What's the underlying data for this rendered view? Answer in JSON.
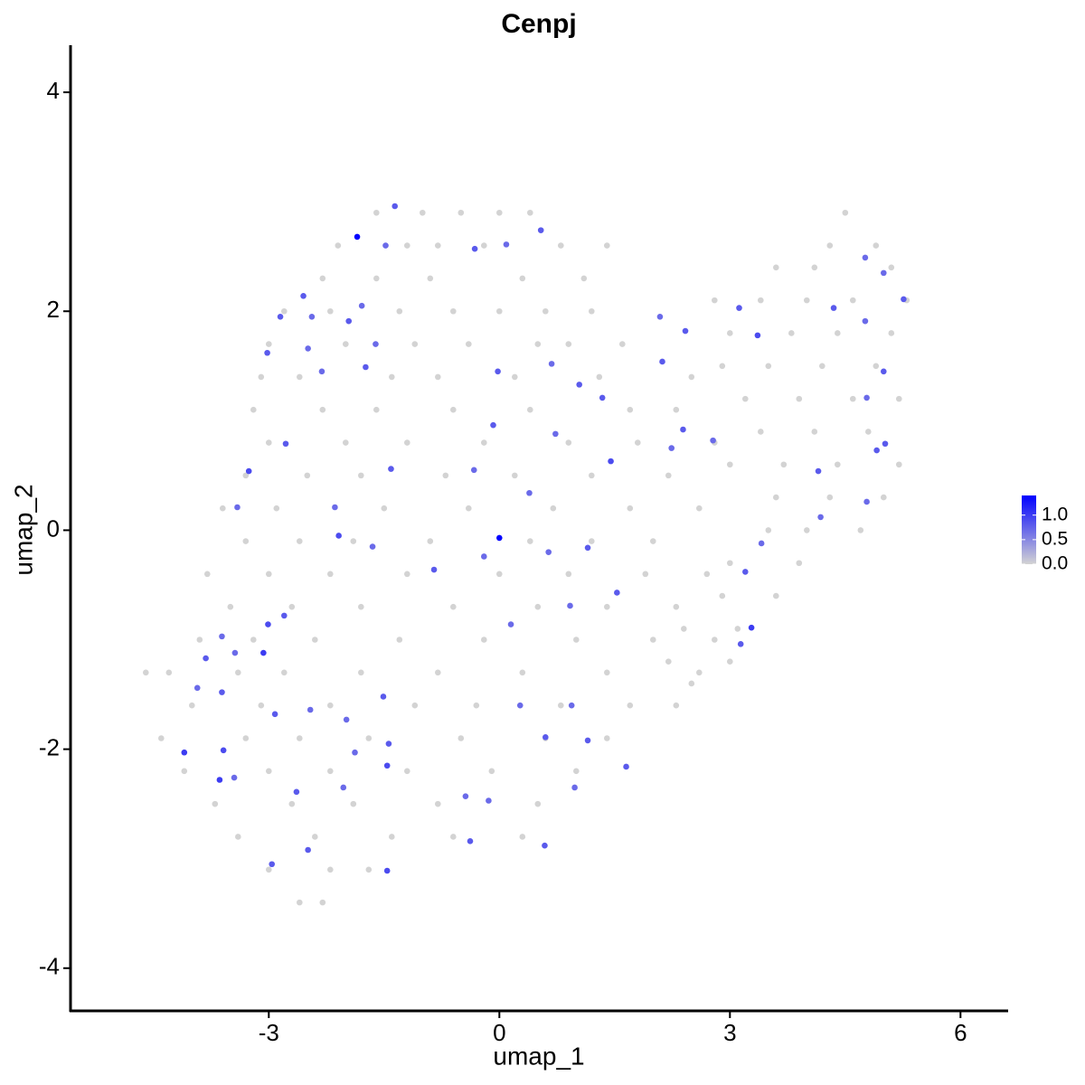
{
  "chart_data": {
    "type": "scatter",
    "title": "Cenpj",
    "xlabel": "umap_1",
    "ylabel": "umap_2",
    "x": [
      -1.6,
      -1.0,
      -0.5,
      0.0,
      0.4,
      -2.1,
      -1.2,
      -0.8,
      -0.2,
      0.8,
      1.4,
      -2.3,
      -1.6,
      -0.9,
      0.3,
      1.1,
      -2.8,
      -2.2,
      -1.3,
      -0.6,
      0.0,
      0.6,
      1.2,
      -3.0,
      -2.0,
      -1.1,
      -0.4,
      0.5,
      0.9,
      1.6,
      -3.1,
      -2.6,
      -1.4,
      -0.8,
      0.2,
      1.3,
      2.5,
      -3.2,
      -2.3,
      -1.6,
      -0.6,
      0.4,
      1.7,
      2.3,
      -3.0,
      -2.0,
      -1.2,
      -0.2,
      0.9,
      1.8,
      2.8,
      -3.3,
      -2.5,
      -1.8,
      -0.7,
      0.2,
      1.2,
      2.2,
      -3.6,
      -2.9,
      -1.5,
      -0.4,
      0.7,
      1.7,
      2.6,
      -3.3,
      -2.6,
      -1.9,
      -0.9,
      0.4,
      1.2,
      2.0,
      -3.8,
      -3.0,
      -2.2,
      -1.2,
      0.0,
      0.9,
      1.9,
      2.7,
      -3.5,
      -2.7,
      -1.8,
      -0.6,
      0.5,
      1.4,
      2.3,
      -3.9,
      -3.2,
      -2.4,
      -1.3,
      -0.2,
      1.0,
      2.0,
      2.8,
      -4.6,
      -4.3,
      -3.4,
      -2.8,
      -1.8,
      -0.8,
      0.3,
      1.4,
      2.6,
      -4.0,
      -3.1,
      -2.2,
      -1.1,
      -0.3,
      0.8,
      1.7,
      2.3,
      -4.4,
      -3.3,
      -2.6,
      -1.7,
      -0.5,
      0.6,
      1.4,
      -4.1,
      -3.0,
      -2.2,
      -1.2,
      -0.1,
      1.0,
      -3.7,
      -2.7,
      -1.9,
      -0.8,
      0.5,
      -3.4,
      -2.4,
      -1.4,
      -0.6,
      0.3,
      -3.0,
      -2.2,
      -1.7,
      -2.6,
      -2.3,
      4.5,
      4.3,
      4.9,
      3.6,
      4.1,
      5.1,
      2.8,
      3.4,
      4.0,
      4.6,
      5.3,
      3.0,
      3.8,
      4.4,
      5.1,
      2.9,
      3.5,
      4.2,
      4.9,
      3.2,
      3.9,
      4.6,
      5.2,
      3.4,
      4.1,
      4.8,
      3.0,
      3.7,
      4.4,
      5.2,
      3.6,
      4.3,
      5.0,
      3.5,
      4.0,
      4.7,
      3.0,
      3.9,
      2.9,
      3.6,
      2.4,
      3.1,
      2.2,
      3.0,
      2.5,
      -1.85,
      0,
      -1.36,
      -1.48,
      -0.32,
      0.09,
      0.54,
      -2.55,
      -2.85,
      -2.44,
      -1.79,
      -1.96,
      -1.61,
      -3.02,
      -2.49,
      -2.31,
      -1.74,
      -0.02,
      0.68,
      1.04,
      1.34,
      -0.08,
      0.73,
      0.39,
      -3.26,
      -2.78,
      -2.14,
      -1.41,
      -0.33,
      -3.41,
      -2.09,
      -1.65,
      -0.85,
      -0.2,
      1.15,
      1.53,
      0.92,
      0.15,
      -2.8,
      -3.01,
      -3.07,
      -3.61,
      -3.82,
      -3.44,
      -3.93,
      -3.61,
      -2.92,
      -2.46,
      -1.99,
      -1.51,
      -1.44,
      -1.46,
      -1.88,
      -3.59,
      -4.1,
      -3.64,
      -3.45,
      -2.64,
      -2.03,
      -2.49,
      -1.46,
      -2.96,
      -0.38,
      -0.14,
      -0.44,
      0.27,
      0.6,
      0.94,
      1.15,
      1.65,
      0.98,
      0.59,
      3.2,
      3.41,
      3.28,
      3.14,
      2.39,
      2.24,
      2.78,
      2.42,
      2.09,
      2.12,
      3.12,
      3.36,
      4.35,
      4.76,
      5.0,
      5.26,
      4.76,
      5.0,
      4.78,
      5.02,
      4.91,
      4.78,
      4.15,
      4.18,
      1.45,
      0.64
    ],
    "y": [
      2.9,
      2.9,
      2.9,
      2.9,
      2.9,
      2.6,
      2.6,
      2.6,
      2.6,
      2.6,
      2.6,
      2.3,
      2.3,
      2.3,
      2.3,
      2.3,
      2.0,
      2.0,
      2.0,
      2.0,
      2.0,
      2.0,
      2.0,
      1.7,
      1.7,
      1.7,
      1.7,
      1.7,
      1.7,
      1.7,
      1.4,
      1.4,
      1.4,
      1.4,
      1.4,
      1.4,
      1.4,
      1.1,
      1.1,
      1.1,
      1.1,
      1.1,
      1.1,
      1.1,
      0.8,
      0.8,
      0.8,
      0.8,
      0.8,
      0.8,
      0.8,
      0.5,
      0.5,
      0.5,
      0.5,
      0.5,
      0.5,
      0.5,
      0.2,
      0.2,
      0.2,
      0.2,
      0.2,
      0.2,
      0.2,
      -0.1,
      -0.1,
      -0.1,
      -0.1,
      -0.1,
      -0.1,
      -0.1,
      -0.4,
      -0.4,
      -0.4,
      -0.4,
      -0.4,
      -0.4,
      -0.4,
      -0.4,
      -0.7,
      -0.7,
      -0.7,
      -0.7,
      -0.7,
      -0.7,
      -0.7,
      -1.0,
      -1.0,
      -1.0,
      -1.0,
      -1.0,
      -1.0,
      -1.0,
      -1.0,
      -1.3,
      -1.3,
      -1.3,
      -1.3,
      -1.3,
      -1.3,
      -1.3,
      -1.3,
      -1.3,
      -1.6,
      -1.6,
      -1.6,
      -1.6,
      -1.6,
      -1.6,
      -1.6,
      -1.6,
      -1.9,
      -1.9,
      -1.9,
      -1.9,
      -1.9,
      -1.9,
      -1.9,
      -2.2,
      -2.2,
      -2.2,
      -2.2,
      -2.2,
      -2.2,
      -2.5,
      -2.5,
      -2.5,
      -2.5,
      -2.5,
      -2.8,
      -2.8,
      -2.8,
      -2.8,
      -2.8,
      -3.1,
      -3.1,
      -3.1,
      -3.4,
      -3.4,
      2.9,
      2.6,
      2.6,
      2.4,
      2.4,
      2.4,
      2.1,
      2.1,
      2.1,
      2.1,
      2.1,
      1.8,
      1.8,
      1.8,
      1.8,
      1.5,
      1.5,
      1.5,
      1.5,
      1.2,
      1.2,
      1.2,
      1.2,
      0.9,
      0.9,
      0.9,
      0.6,
      0.6,
      0.6,
      0.6,
      0.3,
      0.3,
      0.3,
      0.0,
      0.0,
      0.0,
      -0.3,
      -0.3,
      -0.6,
      -0.6,
      -0.9,
      -0.9,
      -1.2,
      -1.2,
      -1.4,
      2.68,
      -0.07,
      2.96,
      2.6,
      2.57,
      2.61,
      2.74,
      2.14,
      1.95,
      1.95,
      2.05,
      1.91,
      1.7,
      1.62,
      1.66,
      1.45,
      1.49,
      1.45,
      1.52,
      1.33,
      1.21,
      0.96,
      0.88,
      0.34,
      0.54,
      0.79,
      0.21,
      0.56,
      0.55,
      0.21,
      -0.05,
      -0.15,
      -0.36,
      -0.24,
      -0.16,
      -0.57,
      -0.69,
      -0.86,
      -0.78,
      -0.86,
      -1.12,
      -0.97,
      -1.17,
      -1.12,
      -1.44,
      -1.48,
      -1.68,
      -1.64,
      -1.73,
      -1.52,
      -1.95,
      -2.15,
      -2.03,
      -2.01,
      -2.03,
      -2.28,
      -2.26,
      -2.39,
      -2.35,
      -2.92,
      -3.11,
      -3.05,
      -2.84,
      -2.47,
      -2.43,
      -1.6,
      -1.89,
      -1.6,
      -1.92,
      -2.16,
      -2.35,
      -2.88,
      -0.38,
      -0.12,
      -0.89,
      -1.04,
      0.92,
      0.75,
      0.82,
      1.82,
      1.95,
      1.54,
      2.03,
      1.78,
      2.03,
      2.49,
      2.35,
      2.11,
      1.91,
      1.45,
      1.21,
      0.79,
      0.73,
      0.26,
      0.54,
      0.12,
      0.63,
      -0.2
    ],
    "values": [
      0,
      0,
      0,
      0,
      0,
      0,
      0,
      0,
      0,
      0,
      0,
      0,
      0,
      0,
      0,
      0,
      0,
      0,
      0,
      0,
      0,
      0,
      0,
      0,
      0,
      0,
      0,
      0,
      0,
      0,
      0,
      0,
      0,
      0,
      0,
      0,
      0,
      0,
      0,
      0,
      0,
      0,
      0,
      0,
      0,
      0,
      0,
      0,
      0,
      0,
      0,
      0,
      0,
      0,
      0,
      0,
      0,
      0,
      0,
      0,
      0,
      0,
      0,
      0,
      0,
      0,
      0,
      0,
      0,
      0,
      0,
      0,
      0,
      0,
      0,
      0,
      0,
      0,
      0,
      0,
      0,
      0,
      0,
      0,
      0,
      0,
      0,
      0,
      0,
      0,
      0,
      0,
      0,
      0,
      0,
      0,
      0,
      0,
      0,
      0,
      0,
      0,
      0,
      0,
      0,
      0,
      0,
      0,
      0,
      0,
      0,
      0,
      0,
      0,
      0,
      0,
      0,
      0,
      0,
      0,
      0,
      0,
      0,
      0,
      0,
      0,
      0,
      0,
      0,
      0,
      0,
      0,
      0,
      0,
      0,
      0,
      0,
      0,
      0,
      0,
      0,
      0,
      0,
      0,
      0,
      0,
      0,
      0,
      0,
      0,
      0,
      0,
      0,
      0,
      0,
      0,
      0,
      0,
      0,
      0,
      0,
      0,
      0,
      0,
      0,
      0,
      0,
      0,
      0,
      0,
      0,
      0,
      0,
      0,
      0,
      0,
      0,
      0,
      0,
      0,
      0,
      0,
      0,
      0,
      0,
      1.4,
      1.4,
      0.8,
      0.7,
      0.8,
      0.7,
      0.8,
      0.8,
      0.8,
      0.7,
      0.7,
      0.8,
      0.7,
      0.8,
      0.7,
      0.7,
      0.8,
      0.8,
      0.7,
      0.8,
      0.8,
      0.8,
      0.7,
      0.7,
      0.9,
      0.8,
      0.7,
      0.8,
      0.7,
      0.7,
      0.9,
      0.7,
      0.8,
      0.7,
      0.8,
      0.8,
      0.7,
      0.7,
      0.8,
      0.9,
      1.0,
      0.7,
      0.8,
      0.7,
      0.7,
      0.8,
      0.8,
      0.7,
      0.7,
      0.8,
      0.8,
      0.9,
      0.7,
      0.9,
      1.0,
      1.0,
      0.7,
      0.8,
      0.7,
      0.8,
      0.9,
      0.8,
      0.8,
      0.7,
      0.7,
      0.7,
      0.8,
      0.7,
      0.8,
      0.8,
      0.7,
      0.8,
      0.8,
      0.7,
      1.0,
      0.8,
      0.8,
      0.7,
      0.7,
      0.8,
      0.7,
      0.8,
      0.8,
      0.9,
      0.8,
      0.7,
      0.7,
      0.8,
      0.7,
      0.8,
      0.7,
      0.8,
      0.8,
      0.7,
      0.8,
      0.7,
      0.9,
      0.7
    ],
    "xlim": [
      -5.58,
      6.62
    ],
    "xticks": [
      -3,
      0,
      3,
      6
    ],
    "ylim": [
      -4.39,
      4.43
    ],
    "yticks": [
      -4,
      -2,
      0,
      2,
      4
    ],
    "color_low": "#d3d3d3",
    "color_high": "#0000ff",
    "colorbar_lim": [
      0,
      1.4
    ],
    "colorbar_ticks": [
      {
        "value": 0,
        "label": "0.0"
      },
      {
        "value": 0.5,
        "label": "0.5"
      },
      {
        "value": 1,
        "label": "1.0"
      }
    ]
  }
}
